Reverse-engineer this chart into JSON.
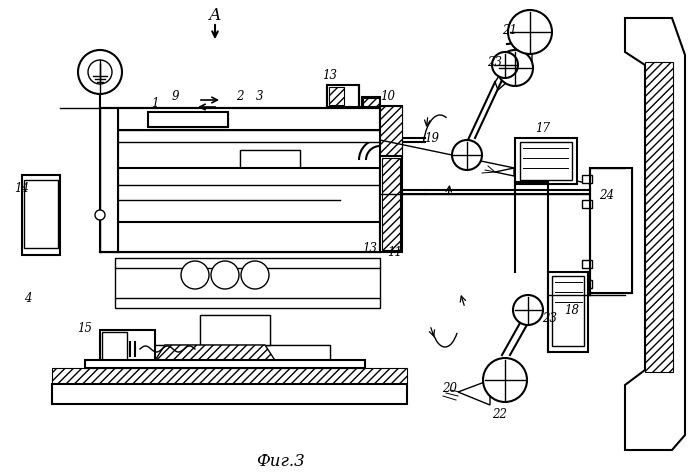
{
  "title": "Фиг.3",
  "bg_color": "#ffffff",
  "figsize": [
    6.99,
    4.74
  ],
  "dpi": 100,
  "labels": [
    [
      155,
      103,
      "1"
    ],
    [
      175,
      96,
      "9"
    ],
    [
      240,
      96,
      "2"
    ],
    [
      260,
      96,
      "3"
    ],
    [
      330,
      75,
      "13"
    ],
    [
      370,
      248,
      "13"
    ],
    [
      388,
      96,
      "10"
    ],
    [
      395,
      252,
      "11"
    ],
    [
      22,
      188,
      "14"
    ],
    [
      28,
      298,
      "4"
    ],
    [
      85,
      328,
      "15"
    ],
    [
      543,
      128,
      "17"
    ],
    [
      572,
      310,
      "18"
    ],
    [
      432,
      138,
      "19"
    ],
    [
      450,
      388,
      "20"
    ],
    [
      510,
      30,
      "21"
    ],
    [
      500,
      415,
      "22"
    ],
    [
      495,
      62,
      "23"
    ],
    [
      550,
      318,
      "23"
    ],
    [
      607,
      195,
      "24"
    ]
  ]
}
